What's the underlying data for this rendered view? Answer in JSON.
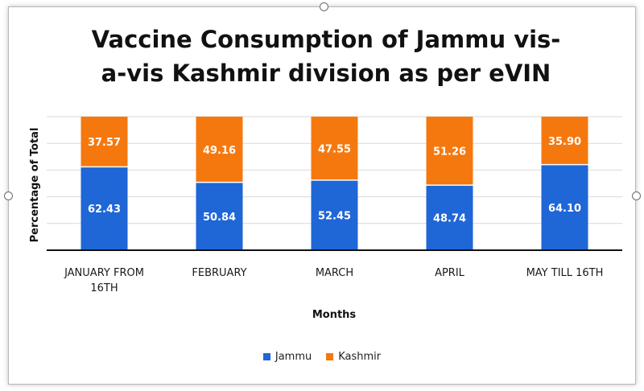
{
  "chart_data": {
    "type": "bar",
    "stacked": true,
    "title_lines": [
      "Vaccine Consumption of Jammu vis-",
      "a-vis Kashmir division as per eVIN"
    ],
    "xlabel": "Months",
    "ylabel": "Percentage of Total",
    "categories": [
      [
        "JANUARY FROM",
        "16TH"
      ],
      [
        "FEBRUARY"
      ],
      [
        "MARCH"
      ],
      [
        "APRIL"
      ],
      [
        "MAY TILL 16TH"
      ]
    ],
    "series": [
      {
        "name": "Jammu",
        "color": "#1f66d6",
        "values": [
          62.43,
          50.84,
          52.45,
          48.74,
          64.1
        ],
        "labels": [
          "62.43",
          "50.84",
          "52.45",
          "48.74",
          "64.10"
        ]
      },
      {
        "name": "Kashmir",
        "color": "#f5780f",
        "values": [
          37.57,
          49.16,
          47.55,
          51.26,
          35.9
        ],
        "labels": [
          "37.57",
          "49.16",
          "47.55",
          "51.26",
          "35.90"
        ]
      }
    ],
    "ylim": [
      0,
      100
    ],
    "grid": true,
    "legend_position": "bottom"
  }
}
